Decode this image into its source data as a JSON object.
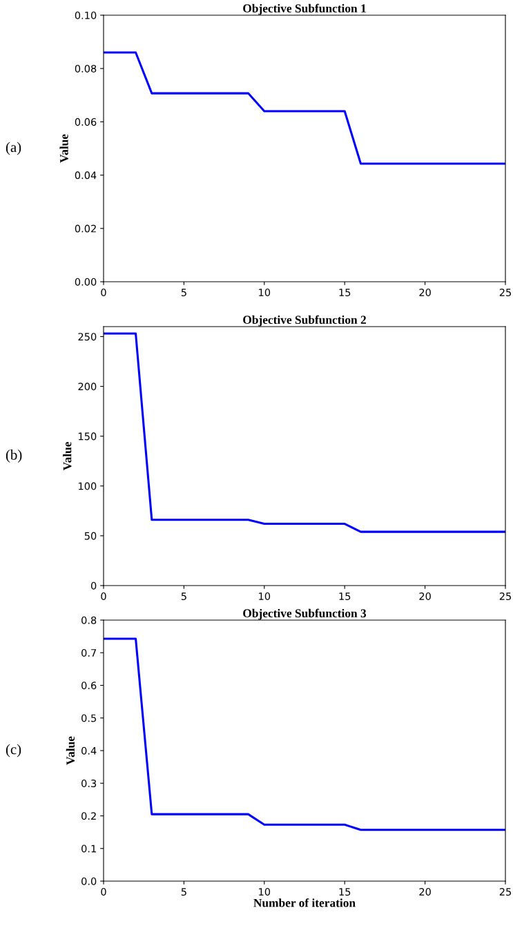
{
  "chart_data": [
    {
      "type": "line",
      "title": "Objective Subfunction 1",
      "ylabel": "Value",
      "annotations": [
        "(a)"
      ],
      "x": [
        0,
        1,
        2,
        3,
        4,
        5,
        6,
        7,
        8,
        9,
        10,
        11,
        12,
        13,
        14,
        15,
        16,
        17,
        18,
        19,
        20,
        21,
        22,
        23,
        24,
        25
      ],
      "series": [
        {
          "color": "#0000ff",
          "values": [
            0.086,
            0.086,
            0.086,
            0.0707,
            0.0707,
            0.0707,
            0.0707,
            0.0707,
            0.0707,
            0.0707,
            0.064,
            0.064,
            0.064,
            0.064,
            0.064,
            0.064,
            0.0443,
            0.0443,
            0.0443,
            0.0443,
            0.0443,
            0.0443,
            0.0443,
            0.0443,
            0.0443,
            0.0443
          ]
        }
      ],
      "xlim": [
        0,
        25
      ],
      "xticks": [
        0,
        5,
        10,
        15,
        20,
        25
      ],
      "ylim": [
        0,
        0.1
      ],
      "yticks": [
        {
          "value": 0,
          "label": "0.00"
        },
        {
          "value": 0.02,
          "label": "0.02"
        },
        {
          "value": 0.04,
          "label": "0.04"
        },
        {
          "value": 0.06,
          "label": "0.06"
        },
        {
          "value": 0.08,
          "label": "0.08"
        },
        {
          "value": 0.1,
          "label": "0.10"
        }
      ],
      "grid": false,
      "legend": false
    },
    {
      "type": "line",
      "title": "Objective Subfunction 2",
      "ylabel": "Value",
      "annotations": [
        "(b)"
      ],
      "x": [
        0,
        1,
        2,
        3,
        4,
        5,
        6,
        7,
        8,
        9,
        10,
        11,
        12,
        13,
        14,
        15,
        16,
        17,
        18,
        19,
        20,
        21,
        22,
        23,
        24,
        25
      ],
      "series": [
        {
          "color": "#0000ff",
          "values": [
            253,
            253,
            253,
            66,
            66,
            66,
            66,
            66,
            66,
            66,
            62,
            62,
            62,
            62,
            62,
            62,
            54,
            54,
            54,
            54,
            54,
            54,
            54,
            54,
            54,
            54
          ]
        }
      ],
      "xlim": [
        0,
        25
      ],
      "xticks": [
        0,
        5,
        10,
        15,
        20,
        25
      ],
      "ylim": [
        0,
        260
      ],
      "yticks": [
        0,
        50,
        100,
        150,
        200,
        250
      ],
      "grid": false,
      "legend": false
    },
    {
      "type": "line",
      "title": "Objective Subfunction 3",
      "ylabel": "Value",
      "xlabel": "Number of iteration",
      "annotations": [
        "(c)"
      ],
      "x": [
        0,
        1,
        2,
        3,
        4,
        5,
        6,
        7,
        8,
        9,
        10,
        11,
        12,
        13,
        14,
        15,
        16,
        17,
        18,
        19,
        20,
        21,
        22,
        23,
        24,
        25
      ],
      "series": [
        {
          "color": "#0000ff",
          "values": [
            0.743,
            0.743,
            0.743,
            0.205,
            0.205,
            0.205,
            0.205,
            0.205,
            0.205,
            0.205,
            0.173,
            0.173,
            0.173,
            0.173,
            0.173,
            0.173,
            0.157,
            0.157,
            0.157,
            0.157,
            0.157,
            0.157,
            0.157,
            0.157,
            0.157,
            0.157
          ]
        }
      ],
      "xlim": [
        0,
        25
      ],
      "xticks": [
        0,
        5,
        10,
        15,
        20,
        25
      ],
      "ylim": [
        0,
        0.8
      ],
      "yticks": [
        {
          "value": 0,
          "label": "0.0"
        },
        {
          "value": 0.1,
          "label": "0.1"
        },
        {
          "value": 0.2,
          "label": "0.2"
        },
        {
          "value": 0.3,
          "label": "0.3"
        },
        {
          "value": 0.4,
          "label": "0.4"
        },
        {
          "value": 0.5,
          "label": "0.5"
        },
        {
          "value": 0.6,
          "label": "0.6"
        },
        {
          "value": 0.7,
          "label": "0.7"
        },
        {
          "value": 0.8,
          "label": "0.8"
        }
      ],
      "grid": false,
      "legend": false
    }
  ]
}
